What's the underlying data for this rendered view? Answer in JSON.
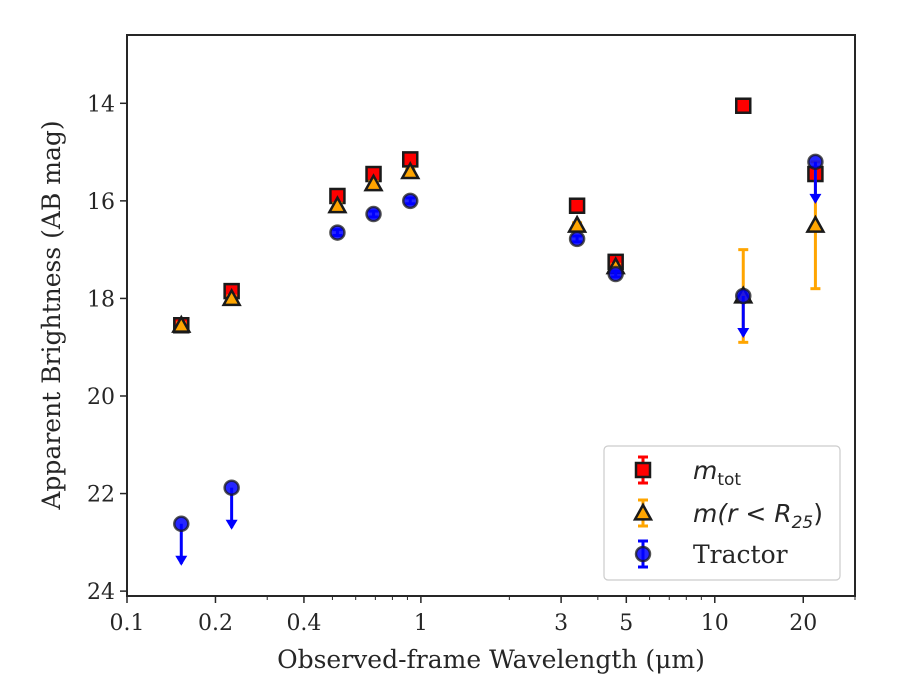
{
  "chart_data": {
    "type": "scatter",
    "x_scale": "log",
    "y_inverted": true,
    "xlabel": "Observed-frame Wavelength (μm)",
    "ylabel": "Apparent Brightness (AB mag)",
    "xlim": [
      0.1,
      30
    ],
    "ylim": [
      24.1,
      12.6
    ],
    "x_ticks": [
      0.1,
      0.2,
      0.4,
      1,
      3,
      5,
      10,
      20
    ],
    "x_tick_labels": [
      "0.1",
      "0.2",
      "0.4",
      "1",
      "3",
      "5",
      "10",
      "20"
    ],
    "y_ticks": [
      14,
      16,
      18,
      20,
      22,
      24
    ],
    "y_tick_labels": [
      "14",
      "16",
      "18",
      "20",
      "22",
      "24"
    ],
    "grid": false,
    "legend_position": "lower-right",
    "series": [
      {
        "name": "m_tot",
        "legend_label": {
          "main": "m",
          "sub": "tot",
          "rest": ""
        },
        "marker": "square",
        "color": "#ff0000",
        "points": [
          {
            "x": 0.153,
            "y": 18.55,
            "err": 0.1
          },
          {
            "x": 0.227,
            "y": 17.85,
            "err": 0.1
          },
          {
            "x": 0.52,
            "y": 15.9,
            "err": 0.1
          },
          {
            "x": 0.69,
            "y": 15.45,
            "err": 0.1
          },
          {
            "x": 0.92,
            "y": 15.15,
            "err": 0.1
          },
          {
            "x": 3.4,
            "y": 16.1,
            "err": 0.1
          },
          {
            "x": 4.6,
            "y": 17.25,
            "err": 0.1
          },
          {
            "x": 12.5,
            "y": 14.05,
            "err": 0.1
          },
          {
            "x": 22.0,
            "y": 15.45,
            "err": 0.1
          }
        ]
      },
      {
        "name": "m(r < R25)",
        "legend_label": {
          "main": "m(r < R",
          "sub": "25",
          "rest": ")"
        },
        "marker": "triangle",
        "color": "#ffa500",
        "points": [
          {
            "x": 0.153,
            "y": 18.55,
            "err": 0.05
          },
          {
            "x": 0.227,
            "y": 18.0,
            "err": 0.05
          },
          {
            "x": 0.52,
            "y": 16.1,
            "err": 0.05
          },
          {
            "x": 0.69,
            "y": 15.65,
            "err": 0.05
          },
          {
            "x": 0.92,
            "y": 15.4,
            "err": 0.05
          },
          {
            "x": 3.4,
            "y": 16.5,
            "err": 0.05
          },
          {
            "x": 4.6,
            "y": 17.35,
            "err": 0.05
          },
          {
            "x": 12.5,
            "y": 17.95,
            "err": 0.95
          },
          {
            "x": 22.0,
            "y": 16.5,
            "err": 1.3
          }
        ]
      },
      {
        "name": "Tractor",
        "legend_label": {
          "main": "Tractor",
          "sub": "",
          "rest": ""
        },
        "marker": "circle",
        "color": "#0000ff",
        "points": [
          {
            "x": 0.153,
            "y": 22.62,
            "err": 0,
            "upper_limit": true
          },
          {
            "x": 0.227,
            "y": 21.88,
            "err": 0,
            "upper_limit": true
          },
          {
            "x": 0.52,
            "y": 16.65,
            "err": 0.06
          },
          {
            "x": 0.69,
            "y": 16.27,
            "err": 0.06
          },
          {
            "x": 0.92,
            "y": 16.0,
            "err": 0.06
          },
          {
            "x": 3.4,
            "y": 16.78,
            "err": 0.06
          },
          {
            "x": 4.6,
            "y": 17.5,
            "err": 0.06
          },
          {
            "x": 12.5,
            "y": 17.95,
            "err": 0,
            "upper_limit": true
          },
          {
            "x": 22.0,
            "y": 15.2,
            "err": 0,
            "upper_limit": true
          }
        ]
      }
    ]
  }
}
